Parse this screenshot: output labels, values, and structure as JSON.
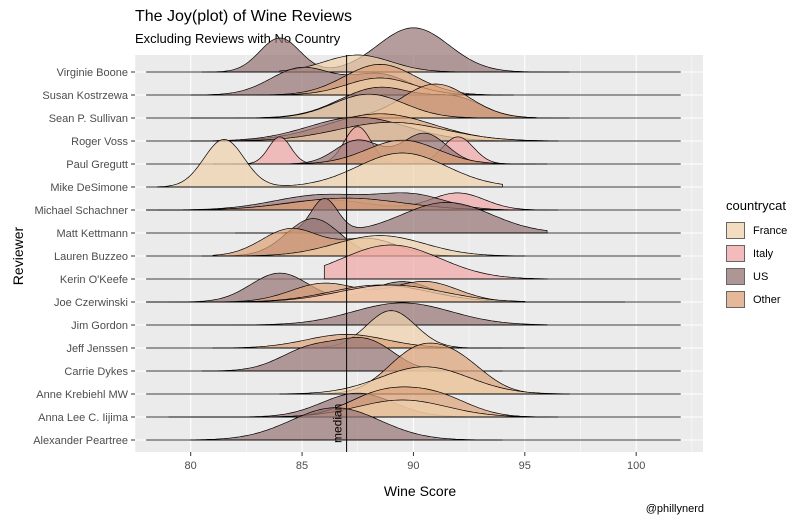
{
  "chart_data": {
    "type": "ridgeline",
    "title": "The Joy(plot) of Wine Reviews",
    "subtitle": "Excluding Reviews with No Country",
    "xlabel": "Wine Score",
    "ylabel": "Reviewer",
    "caption": "@phillynerd",
    "xlim": [
      77.5,
      103
    ],
    "xticks": [
      80,
      85,
      90,
      95,
      100
    ],
    "median": 87,
    "median_label": "median",
    "grid": true,
    "legend": {
      "title": "countrycat",
      "position": "right",
      "entries": [
        {
          "name": "France",
          "color": "#efd2ad"
        },
        {
          "name": "Italy",
          "color": "#f0a5a5"
        },
        {
          "name": "US",
          "color": "#957474"
        },
        {
          "name": "Other",
          "color": "#dda177"
        }
      ]
    },
    "reviewers": [
      "Virginie Boone",
      "Susan Kostrzewa",
      "Sean P. Sullivan",
      "Roger Voss",
      "Paul Gregutt",
      "Mike DeSimone",
      "Michael Schachner",
      "Matt Kettmann",
      "Lauren Buzzeo",
      "Kerin O'Keefe",
      "Joe Czerwinski",
      "Jim Gordon",
      "Jeff Jenssen",
      "Carrie Dykes",
      "Anne Krebiehl MW",
      "Anna Lee C. Iijima",
      "Alexander Peartree"
    ],
    "series": [
      {
        "reviewer": "Virginie Boone",
        "country": "US",
        "peaks": [
          [
            84,
            1.0,
            0.9
          ],
          [
            90,
            1.3,
            1.6
          ]
        ],
        "range": [
          80.5,
          97
        ]
      },
      {
        "reviewer": "Virginie Boone",
        "country": "France",
        "peaks": [
          [
            87.5,
            0.5,
            1.5
          ]
        ],
        "range": [
          84,
          92
        ]
      },
      {
        "reviewer": "Susan Kostrzewa",
        "country": "US",
        "peaks": [
          [
            85,
            0.8,
            1.4
          ],
          [
            88.5,
            0.6,
            1.3
          ]
        ],
        "range": [
          80,
          93
        ]
      },
      {
        "reviewer": "Susan Kostrzewa",
        "country": "Other",
        "peaks": [
          [
            88.5,
            0.9,
            1.6
          ]
        ],
        "range": [
          83,
          94
        ]
      },
      {
        "reviewer": "Susan Kostrzewa",
        "country": "France",
        "peaks": [
          [
            88.5,
            0.5,
            1.5
          ]
        ],
        "range": [
          84,
          94.5
        ]
      },
      {
        "reviewer": "Sean P. Sullivan",
        "country": "US",
        "peaks": [
          [
            88.5,
            0.9,
            1.8
          ],
          [
            92,
            0.5,
            1.2
          ]
        ],
        "range": [
          80,
          97
        ]
      },
      {
        "reviewer": "Sean P. Sullivan",
        "country": "Other",
        "peaks": [
          [
            91,
            1.0,
            1.5
          ]
        ],
        "range": [
          85,
          95.5
        ]
      },
      {
        "reviewer": "Sean P. Sullivan",
        "country": "France",
        "peaks": [
          [
            88,
            0.7,
            1.6
          ]
        ],
        "range": [
          83,
          95
        ]
      },
      {
        "reviewer": "Roger Voss",
        "country": "Other",
        "peaks": [
          [
            88.5,
            0.8,
            2.4
          ]
        ],
        "range": [
          80,
          96
        ]
      },
      {
        "reviewer": "Roger Voss",
        "country": "US",
        "peaks": [
          [
            87.5,
            0.7,
            2.2
          ]
        ],
        "range": [
          81,
          95
        ]
      },
      {
        "reviewer": "Roger Voss",
        "country": "France",
        "peaks": [
          [
            89,
            0.55,
            2.4
          ]
        ],
        "range": [
          82,
          96.5
        ]
      },
      {
        "reviewer": "Paul Gregutt",
        "country": "Italy",
        "peaks": [
          [
            84,
            0.8,
            0.5
          ],
          [
            87.5,
            1.1,
            0.6
          ],
          [
            92,
            0.8,
            0.7
          ]
        ],
        "range": [
          81,
          95.5
        ]
      },
      {
        "reviewer": "Paul Gregutt",
        "country": "US",
        "peaks": [
          [
            87.5,
            0.7,
            1.0
          ],
          [
            90.5,
            0.9,
            1.0
          ]
        ],
        "range": [
          82,
          96
        ]
      },
      {
        "reviewer": "Paul Gregutt",
        "country": "Other",
        "peaks": [
          [
            89.5,
            0.7,
            1.6
          ]
        ],
        "range": [
          83,
          95
        ]
      },
      {
        "reviewer": "Mike DeSimone",
        "country": "France",
        "peaks": [
          [
            81.5,
            1.4,
            0.9
          ],
          [
            89.5,
            1.0,
            2.0
          ]
        ],
        "range": [
          78.5,
          94
        ]
      },
      {
        "reviewer": "Michael Schachner",
        "country": "Italy",
        "peaks": [
          [
            86,
            0.3,
            2.0
          ],
          [
            92,
            0.5,
            1.2
          ]
        ],
        "range": [
          78,
          96.5
        ]
      },
      {
        "reviewer": "Michael Schachner",
        "country": "US",
        "peaks": [
          [
            86,
            0.45,
            2.2
          ],
          [
            90,
            0.4,
            1.5
          ]
        ],
        "range": [
          78.5,
          95
        ]
      },
      {
        "reviewer": "Michael Schachner",
        "country": "Other",
        "peaks": [
          [
            87,
            0.35,
            2.5
          ]
        ],
        "range": [
          79,
          95
        ]
      },
      {
        "reviewer": "Matt Kettmann",
        "country": "US",
        "peaks": [
          [
            86,
            1.0,
            0.6
          ],
          [
            91.5,
            0.9,
            2.0
          ]
        ],
        "range": [
          82,
          96
        ]
      },
      {
        "reviewer": "Lauren Buzzeo",
        "country": "US",
        "peaks": [
          [
            85.5,
            1.1,
            1.2
          ]
        ],
        "range": [
          80.5,
          88
        ]
      },
      {
        "reviewer": "Lauren Buzzeo",
        "country": "Other",
        "peaks": [
          [
            84.5,
            0.8,
            1.3
          ],
          [
            88,
            0.5,
            1.3
          ]
        ],
        "range": [
          81,
          93
        ]
      },
      {
        "reviewer": "Lauren Buzzeo",
        "country": "France",
        "peaks": [
          [
            88.5,
            0.6,
            2.0
          ]
        ],
        "range": [
          82,
          95
        ]
      },
      {
        "reviewer": "Kerin O'Keefe",
        "country": "Italy",
        "peaks": [
          [
            89,
            1.0,
            2.2
          ]
        ],
        "range": [
          86,
          96
        ]
      },
      {
        "reviewer": "Joe Czerwinski",
        "country": "US",
        "peaks": [
          [
            84,
            0.85,
            1.3
          ],
          [
            89.5,
            0.6,
            1.4
          ]
        ],
        "range": [
          78,
          99.5
        ]
      },
      {
        "reviewer": "Joe Czerwinski",
        "country": "Other",
        "peaks": [
          [
            86,
            0.55,
            1.5
          ],
          [
            90.5,
            0.6,
            1.5
          ]
        ],
        "range": [
          79,
          95
        ]
      },
      {
        "reviewer": "Joe Czerwinski",
        "country": "Italy",
        "peaks": [
          [
            88.5,
            0.5,
            2.2
          ]
        ],
        "range": [
          80,
          95
        ]
      },
      {
        "reviewer": "Joe Czerwinski",
        "country": "France",
        "peaks": [
          [
            89,
            0.5,
            2.3
          ]
        ],
        "range": [
          80,
          95
        ]
      },
      {
        "reviewer": "Jim Gordon",
        "country": "US",
        "peaks": [
          [
            89.5,
            0.65,
            2.2
          ]
        ],
        "range": [
          80,
          96
        ]
      },
      {
        "reviewer": "Jeff Jenssen",
        "country": "France",
        "peaks": [
          [
            89,
            1.1,
            1.1
          ]
        ],
        "range": [
          84,
          95
        ]
      },
      {
        "reviewer": "Jeff Jenssen",
        "country": "Other",
        "peaks": [
          [
            87,
            0.4,
            1.8
          ]
        ],
        "range": [
          81,
          94
        ]
      },
      {
        "reviewer": "Carrie Dykes",
        "country": "US",
        "peaks": [
          [
            85.5,
            0.7,
            1.4
          ],
          [
            88,
            0.8,
            1.2
          ]
        ],
        "range": [
          80.5,
          94
        ]
      },
      {
        "reviewer": "Anne Krebiehl MW",
        "country": "Other",
        "peaks": [
          [
            90,
            1.1,
            1.3
          ],
          [
            92,
            0.9,
            1.3
          ]
        ],
        "range": [
          84,
          97
        ]
      },
      {
        "reviewer": "Anne Krebiehl MW",
        "country": "France",
        "peaks": [
          [
            90.5,
            0.8,
            2.0
          ]
        ],
        "range": [
          84,
          97
        ]
      },
      {
        "reviewer": "Anna Lee C. Iijima",
        "country": "US",
        "peaks": [
          [
            87.5,
            0.7,
            1.6
          ]
        ],
        "range": [
          79,
          95
        ]
      },
      {
        "reviewer": "Anna Lee C. Iijima",
        "country": "Other",
        "peaks": [
          [
            88.5,
            0.65,
            1.5
          ],
          [
            91,
            0.6,
            1.5
          ]
        ],
        "range": [
          80,
          96.5
        ]
      },
      {
        "reviewer": "Anna Lee C. Iijima",
        "country": "France",
        "peaks": [
          [
            89.5,
            0.5,
            2.0
          ]
        ],
        "range": [
          82,
          96
        ]
      },
      {
        "reviewer": "Alexander Peartree",
        "country": "US",
        "peaks": [
          [
            86.5,
            0.95,
            2.0
          ]
        ],
        "range": [
          80,
          94
        ]
      }
    ]
  }
}
